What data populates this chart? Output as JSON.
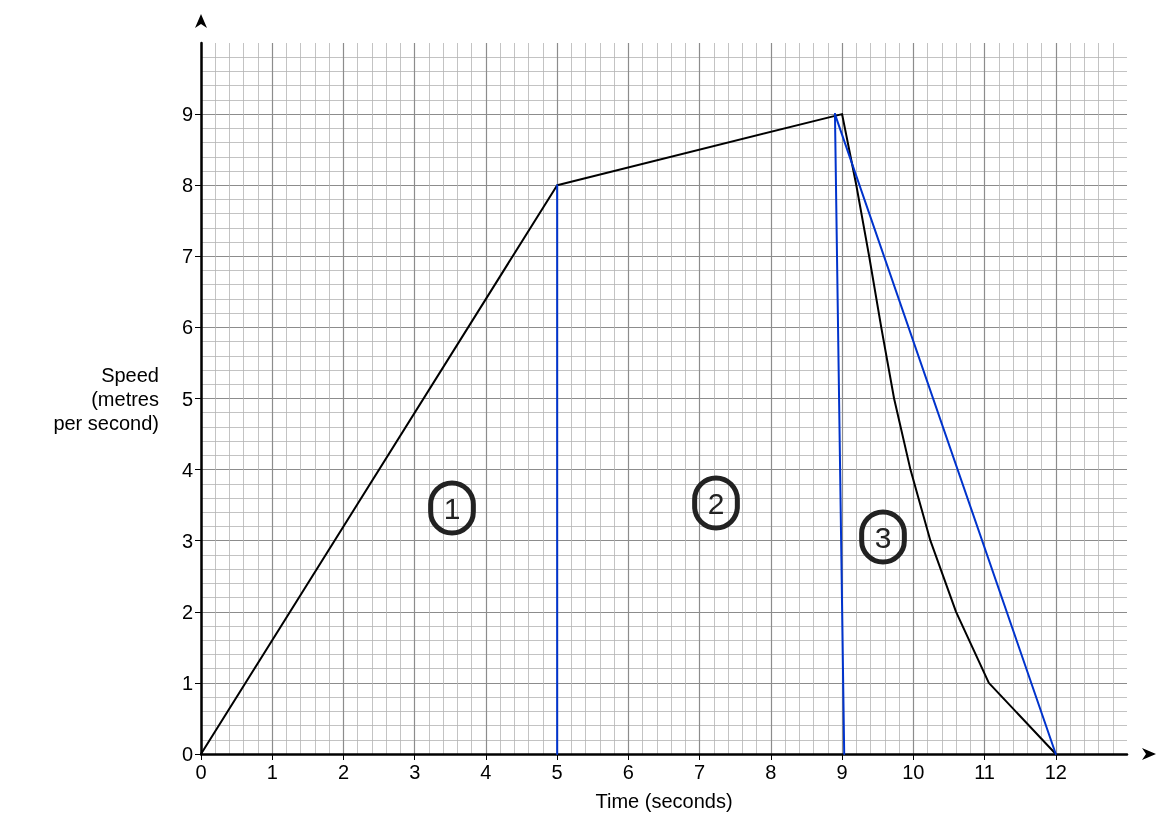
{
  "chart_data": {
    "type": "line",
    "xlabel": "Time (seconds)",
    "ylabel": "Speed\n(metres\nper second)",
    "xlim": [
      0,
      13
    ],
    "ylim": [
      0,
      10
    ],
    "xticks": [
      0,
      1,
      2,
      3,
      4,
      5,
      6,
      7,
      8,
      9,
      10,
      11,
      12
    ],
    "yticks": [
      0,
      1,
      2,
      3,
      4,
      5,
      6,
      7,
      8,
      9
    ],
    "grid": true,
    "marker": "none",
    "line_style": "solid",
    "series": [
      {
        "color": "#000000",
        "x": [
          0,
          5,
          9,
          9.2,
          9.38,
          9.55,
          9.73,
          9.96,
          10.24,
          10.6,
          11.06,
          12
        ],
        "values": [
          0,
          8,
          9,
          8,
          7,
          6,
          5,
          4,
          3,
          2,
          1,
          0
        ]
      },
      {
        "color": "#0033cc",
        "x": [
          5,
          5
        ],
        "values": [
          8,
          0
        ]
      },
      {
        "color": "#0033cc",
        "x": [
          8.9,
          9.03
        ],
        "values": [
          9,
          0
        ]
      },
      {
        "color": "#0033cc",
        "x": [
          8.9,
          12
        ],
        "values": [
          9,
          0
        ]
      }
    ],
    "annotations": [
      "1",
      "2",
      "3"
    ]
  }
}
